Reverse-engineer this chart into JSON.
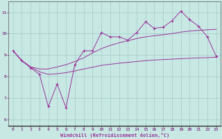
{
  "xlabel": "Windchill (Refroidissement éolien,°C)",
  "background_color": "#c8e8e4",
  "grid_color": "#a8d0cc",
  "line_color": "#993399",
  "axis_bg": "#c8e8e4",
  "xlim": [
    -0.5,
    23.5
  ],
  "ylim": [
    5.7,
    11.5
  ],
  "yticks": [
    6,
    7,
    8,
    9,
    10,
    11
  ],
  "xticks": [
    0,
    1,
    2,
    3,
    4,
    5,
    6,
    7,
    8,
    9,
    10,
    11,
    12,
    13,
    14,
    15,
    16,
    17,
    18,
    19,
    20,
    21,
    22,
    23
  ],
  "hours": [
    0,
    1,
    2,
    3,
    4,
    5,
    6,
    7,
    8,
    9,
    10,
    11,
    12,
    13,
    14,
    15,
    16,
    17,
    18,
    19,
    20,
    21,
    22,
    23
  ],
  "temp_main": [
    9.2,
    8.75,
    8.4,
    8.1,
    6.6,
    7.65,
    6.55,
    8.55,
    9.2,
    9.2,
    10.05,
    9.85,
    9.85,
    9.7,
    10.05,
    10.55,
    10.25,
    10.3,
    10.6,
    11.05,
    10.65,
    10.35,
    9.85,
    8.95
  ],
  "temp_smooth_high": [
    9.2,
    8.75,
    8.45,
    8.35,
    8.35,
    8.45,
    8.55,
    8.7,
    8.87,
    9.1,
    9.3,
    9.45,
    9.57,
    9.67,
    9.77,
    9.85,
    9.9,
    9.95,
    10.0,
    10.07,
    10.12,
    10.15,
    10.18,
    10.2
  ],
  "temp_smooth_low": [
    9.2,
    8.72,
    8.44,
    8.22,
    8.1,
    8.13,
    8.18,
    8.26,
    8.35,
    8.43,
    8.52,
    8.57,
    8.62,
    8.66,
    8.7,
    8.74,
    8.77,
    8.79,
    8.81,
    8.83,
    8.85,
    8.87,
    8.88,
    8.9
  ]
}
